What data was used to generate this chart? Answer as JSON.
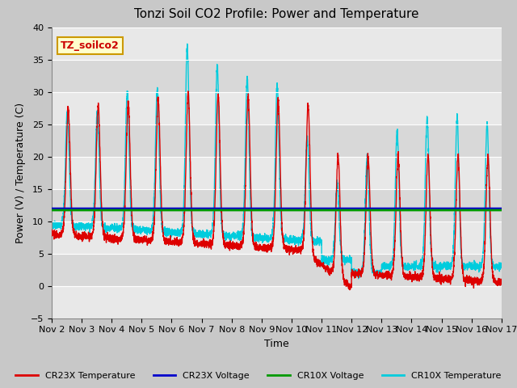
{
  "title": "Tonzi Soil CO2 Profile: Power and Temperature",
  "ylabel": "Power (V) / Temperature (C)",
  "xlabel": "Time",
  "ylim": [
    -5,
    40
  ],
  "xlim": [
    0,
    15
  ],
  "xtick_labels": [
    "Nov 2",
    "Nov 3",
    "Nov 4",
    "Nov 5",
    "Nov 6",
    "Nov 7",
    "Nov 8",
    "Nov 9",
    "Nov 10",
    "Nov 11",
    "Nov 12",
    "Nov 13",
    "Nov 14",
    "Nov 15",
    "Nov 16",
    "Nov 17"
  ],
  "cr23x_voltage_value": 11.9,
  "cr10x_voltage_value": 11.7,
  "legend_labels": [
    "CR23X Temperature",
    "CR23X Voltage",
    "CR10X Voltage",
    "CR10X Temperature"
  ],
  "annotation_text": "TZ_soilco2",
  "annotation_color": "#cc0000",
  "annotation_bg": "#ffffcc",
  "title_fontsize": 11,
  "label_fontsize": 9,
  "tick_fontsize": 8,
  "fig_bg": "#c8c8c8",
  "plot_bg_light": "#e8e8e8",
  "plot_bg_dark": "#d8d8d8",
  "line_red": "#dd0000",
  "line_blue": "#0000cc",
  "line_green": "#009900",
  "line_cyan": "#00ccdd"
}
